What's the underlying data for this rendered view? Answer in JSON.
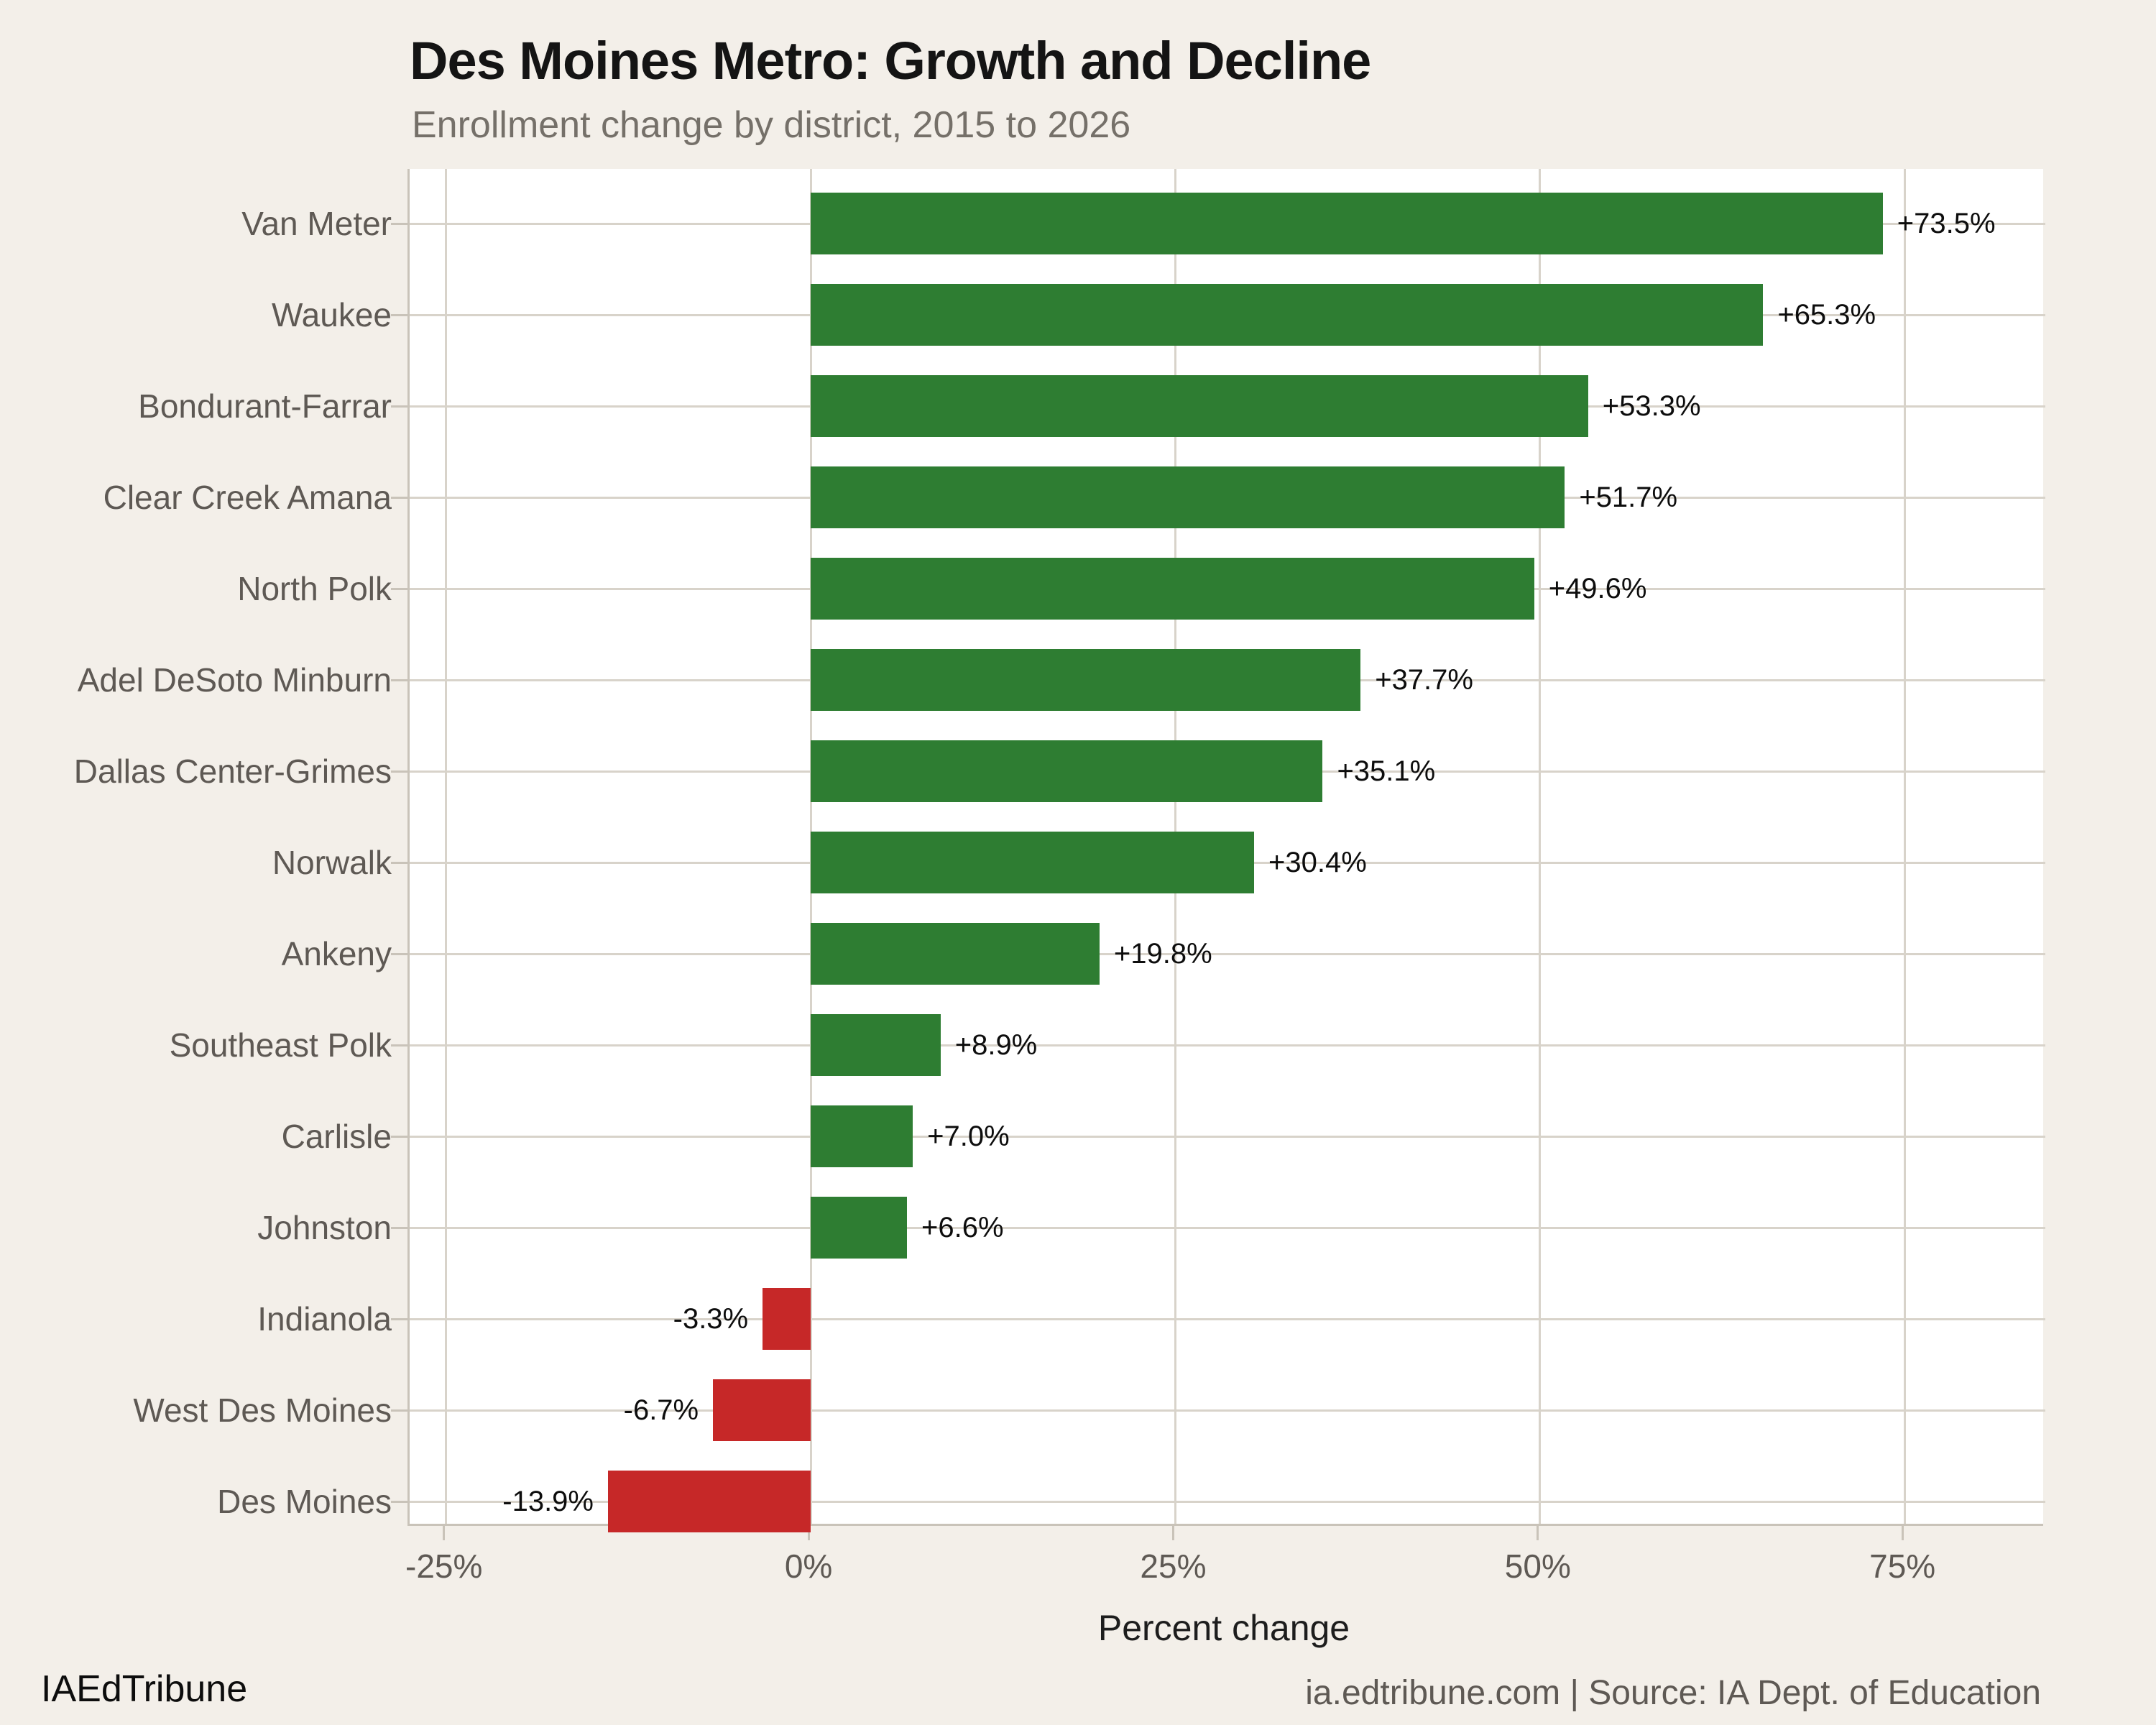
{
  "title": "Des Moines Metro: Growth and Decline",
  "subtitle": "Enrollment change by district, 2015 to 2026",
  "footer": {
    "left": "IAEdTribune",
    "right": "ia.edtribune.com | Source: IA Dept. of Education"
  },
  "colors": {
    "background": "#f3efe9",
    "panel": "#ffffff",
    "gridline": "#d8d3ca",
    "spine": "#c9c3b9",
    "positive": "#2e7d32",
    "negative": "#c62828",
    "axis_text": "#5e5954",
    "value_text": "#0d0d0d"
  },
  "chart_data": {
    "type": "bar",
    "orientation": "horizontal",
    "title": "Des Moines Metro: Growth and Decline",
    "subtitle": "Enrollment change by district, 2015 to 2026",
    "xlabel": "Percent change",
    "ylabel": "",
    "grid": true,
    "xlim": [
      -27.5,
      84.5
    ],
    "xticks": [
      -25,
      0,
      25,
      50,
      75
    ],
    "xtick_labels": [
      "-25%",
      "0%",
      "25%",
      "50%",
      "75%"
    ],
    "categories": [
      "Van Meter",
      "Waukee",
      "Bondurant-Farrar",
      "Clear Creek Amana",
      "North Polk",
      "Adel DeSoto Minburn",
      "Dallas Center-Grimes",
      "Norwalk",
      "Ankeny",
      "Southeast Polk",
      "Carlisle",
      "Johnston",
      "Indianola",
      "West Des Moines",
      "Des Moines"
    ],
    "values": [
      73.5,
      65.3,
      53.3,
      51.7,
      49.6,
      37.7,
      35.1,
      30.4,
      19.8,
      8.9,
      7.0,
      6.6,
      -3.3,
      -6.7,
      -13.9
    ],
    "value_labels": [
      "+73.5%",
      "+65.3%",
      "+53.3%",
      "+51.7%",
      "+49.6%",
      "+37.7%",
      "+35.1%",
      "+30.4%",
      "+19.8%",
      "+8.9%",
      "+7.0%",
      "+6.6%",
      "-3.3%",
      "-6.7%",
      "-13.9%"
    ]
  }
}
